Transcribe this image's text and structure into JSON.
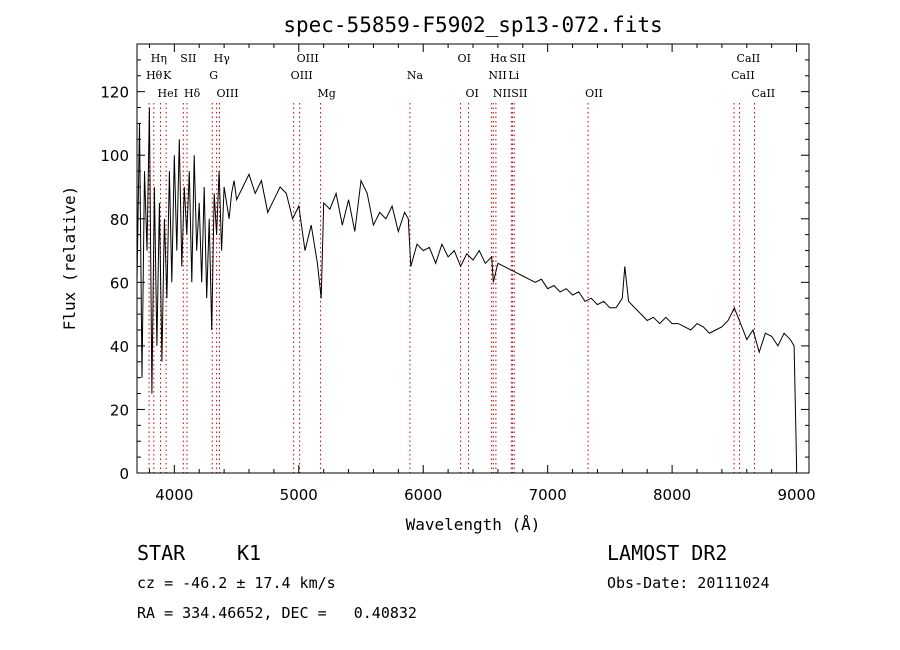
{
  "chart_data": {
    "type": "line",
    "title": "spec-55859-F5902_sp13-072.fits",
    "xlabel": "Wavelength (Å)",
    "ylabel": "Flux (relative)",
    "xlim": [
      3700,
      9100
    ],
    "ylim": [
      0,
      135
    ],
    "xticks": [
      4000,
      5000,
      6000,
      7000,
      8000,
      9000
    ],
    "yticks": [
      0,
      20,
      40,
      60,
      80,
      100,
      120
    ],
    "grid": false,
    "series": [
      {
        "x": [
          3700,
          3720,
          3740,
          3760,
          3780,
          3800,
          3820,
          3840,
          3860,
          3880,
          3900,
          3920,
          3940,
          3960,
          3980,
          4000,
          4020,
          4040,
          4060,
          4080,
          4100,
          4120,
          4140,
          4160,
          4180,
          4200,
          4220,
          4240,
          4260,
          4280,
          4300,
          4320,
          4340,
          4360,
          4380,
          4400,
          4420,
          4440,
          4460,
          4480,
          4500,
          4550,
          4600,
          4650,
          4700,
          4750,
          4800,
          4850,
          4900,
          4950,
          5000,
          5050,
          5100,
          5150,
          5180,
          5200,
          5250,
          5300,
          5350,
          5400,
          5450,
          5500,
          5550,
          5600,
          5650,
          5700,
          5750,
          5800,
          5850,
          5880,
          5900,
          5950,
          6000,
          6050,
          6100,
          6150,
          6200,
          6250,
          6300,
          6350,
          6400,
          6450,
          6500,
          6550,
          6563,
          6600,
          6650,
          6700,
          6750,
          6800,
          6850,
          6900,
          6950,
          7000,
          7050,
          7100,
          7150,
          7200,
          7250,
          7300,
          7350,
          7400,
          7450,
          7500,
          7550,
          7600,
          7620,
          7650,
          7700,
          7750,
          7800,
          7850,
          7900,
          7950,
          8000,
          8050,
          8100,
          8150,
          8200,
          8250,
          8300,
          8350,
          8400,
          8450,
          8500,
          8550,
          8600,
          8650,
          8700,
          8750,
          8800,
          8850,
          8900,
          8950,
          8980,
          9000
        ],
        "y": [
          60,
          110,
          30,
          95,
          70,
          115,
          25,
          90,
          40,
          85,
          35,
          80,
          55,
          95,
          60,
          100,
          70,
          105,
          65,
          90,
          75,
          95,
          60,
          100,
          70,
          85,
          60,
          90,
          55,
          80,
          45,
          88,
          75,
          95,
          70,
          90,
          85,
          80,
          88,
          92,
          86,
          90,
          94,
          88,
          92,
          82,
          86,
          90,
          88,
          80,
          84,
          70,
          78,
          66,
          55,
          85,
          83,
          88,
          78,
          86,
          76,
          92,
          88,
          78,
          82,
          80,
          84,
          76,
          82,
          80,
          65,
          72,
          70,
          71,
          66,
          72,
          68,
          70,
          65,
          69,
          67,
          70,
          66,
          68,
          60,
          66,
          65,
          64,
          63,
          62,
          61,
          60,
          61,
          58,
          59,
          57,
          58,
          56,
          57,
          54,
          55,
          53,
          54,
          52,
          52,
          55,
          65,
          54,
          52,
          50,
          48,
          49,
          47,
          49,
          47,
          47,
          46,
          45,
          47,
          46,
          44,
          45,
          46,
          48,
          52,
          47,
          42,
          45,
          38,
          44,
          43,
          40,
          44,
          42,
          40,
          2
        ]
      }
    ],
    "annotations": [
      {
        "text": "Hη",
        "x": 3835,
        "row": 1
      },
      {
        "text": "Hθ",
        "x": 3797,
        "row": 2
      },
      {
        "text": "K",
        "x": 3934,
        "row": 2
      },
      {
        "text": "HeI",
        "x": 3889,
        "row": 3
      },
      {
        "text": "SII",
        "x": 4072,
        "row": 1
      },
      {
        "text": "Hδ",
        "x": 4102,
        "row": 3
      },
      {
        "text": "Hγ",
        "x": 4340,
        "row": 1
      },
      {
        "text": "G",
        "x": 4305,
        "row": 2
      },
      {
        "text": "OIII",
        "x": 4363,
        "row": 3
      },
      {
        "text": "OIII",
        "x": 5007,
        "row": 1
      },
      {
        "text": "OIII",
        "x": 4959,
        "row": 2
      },
      {
        "text": "Mg",
        "x": 5175,
        "row": 3
      },
      {
        "text": "Na",
        "x": 5893,
        "row": 2
      },
      {
        "text": "OI",
        "x": 6300,
        "row": 1
      },
      {
        "text": "OI",
        "x": 6364,
        "row": 3
      },
      {
        "text": "Hα",
        "x": 6563,
        "row": 1
      },
      {
        "text": "SII",
        "x": 6717,
        "row": 1
      },
      {
        "text": "NII",
        "x": 6548,
        "row": 2
      },
      {
        "text": "Li",
        "x": 6708,
        "row": 2
      },
      {
        "text": "NII",
        "x": 6584,
        "row": 3
      },
      {
        "text": "SII",
        "x": 6731,
        "row": 3
      },
      {
        "text": "OII",
        "x": 7325,
        "row": 3
      },
      {
        "text": "CaII",
        "x": 8542,
        "row": 1
      },
      {
        "text": "CaII",
        "x": 8498,
        "row": 2
      },
      {
        "text": "CaII",
        "x": 8662,
        "row": 3
      }
    ],
    "line_color": "#000000",
    "marker_color": "#cc0000"
  },
  "footer": {
    "class_label": "STAR",
    "subclass": "K1",
    "survey": "LAMOST DR2",
    "velocity": "cz = -46.2 ± 17.4 km/s",
    "obs_date": "Obs-Date: 20111024",
    "coords": "RA = 334.46652, DEC =   0.40832"
  }
}
